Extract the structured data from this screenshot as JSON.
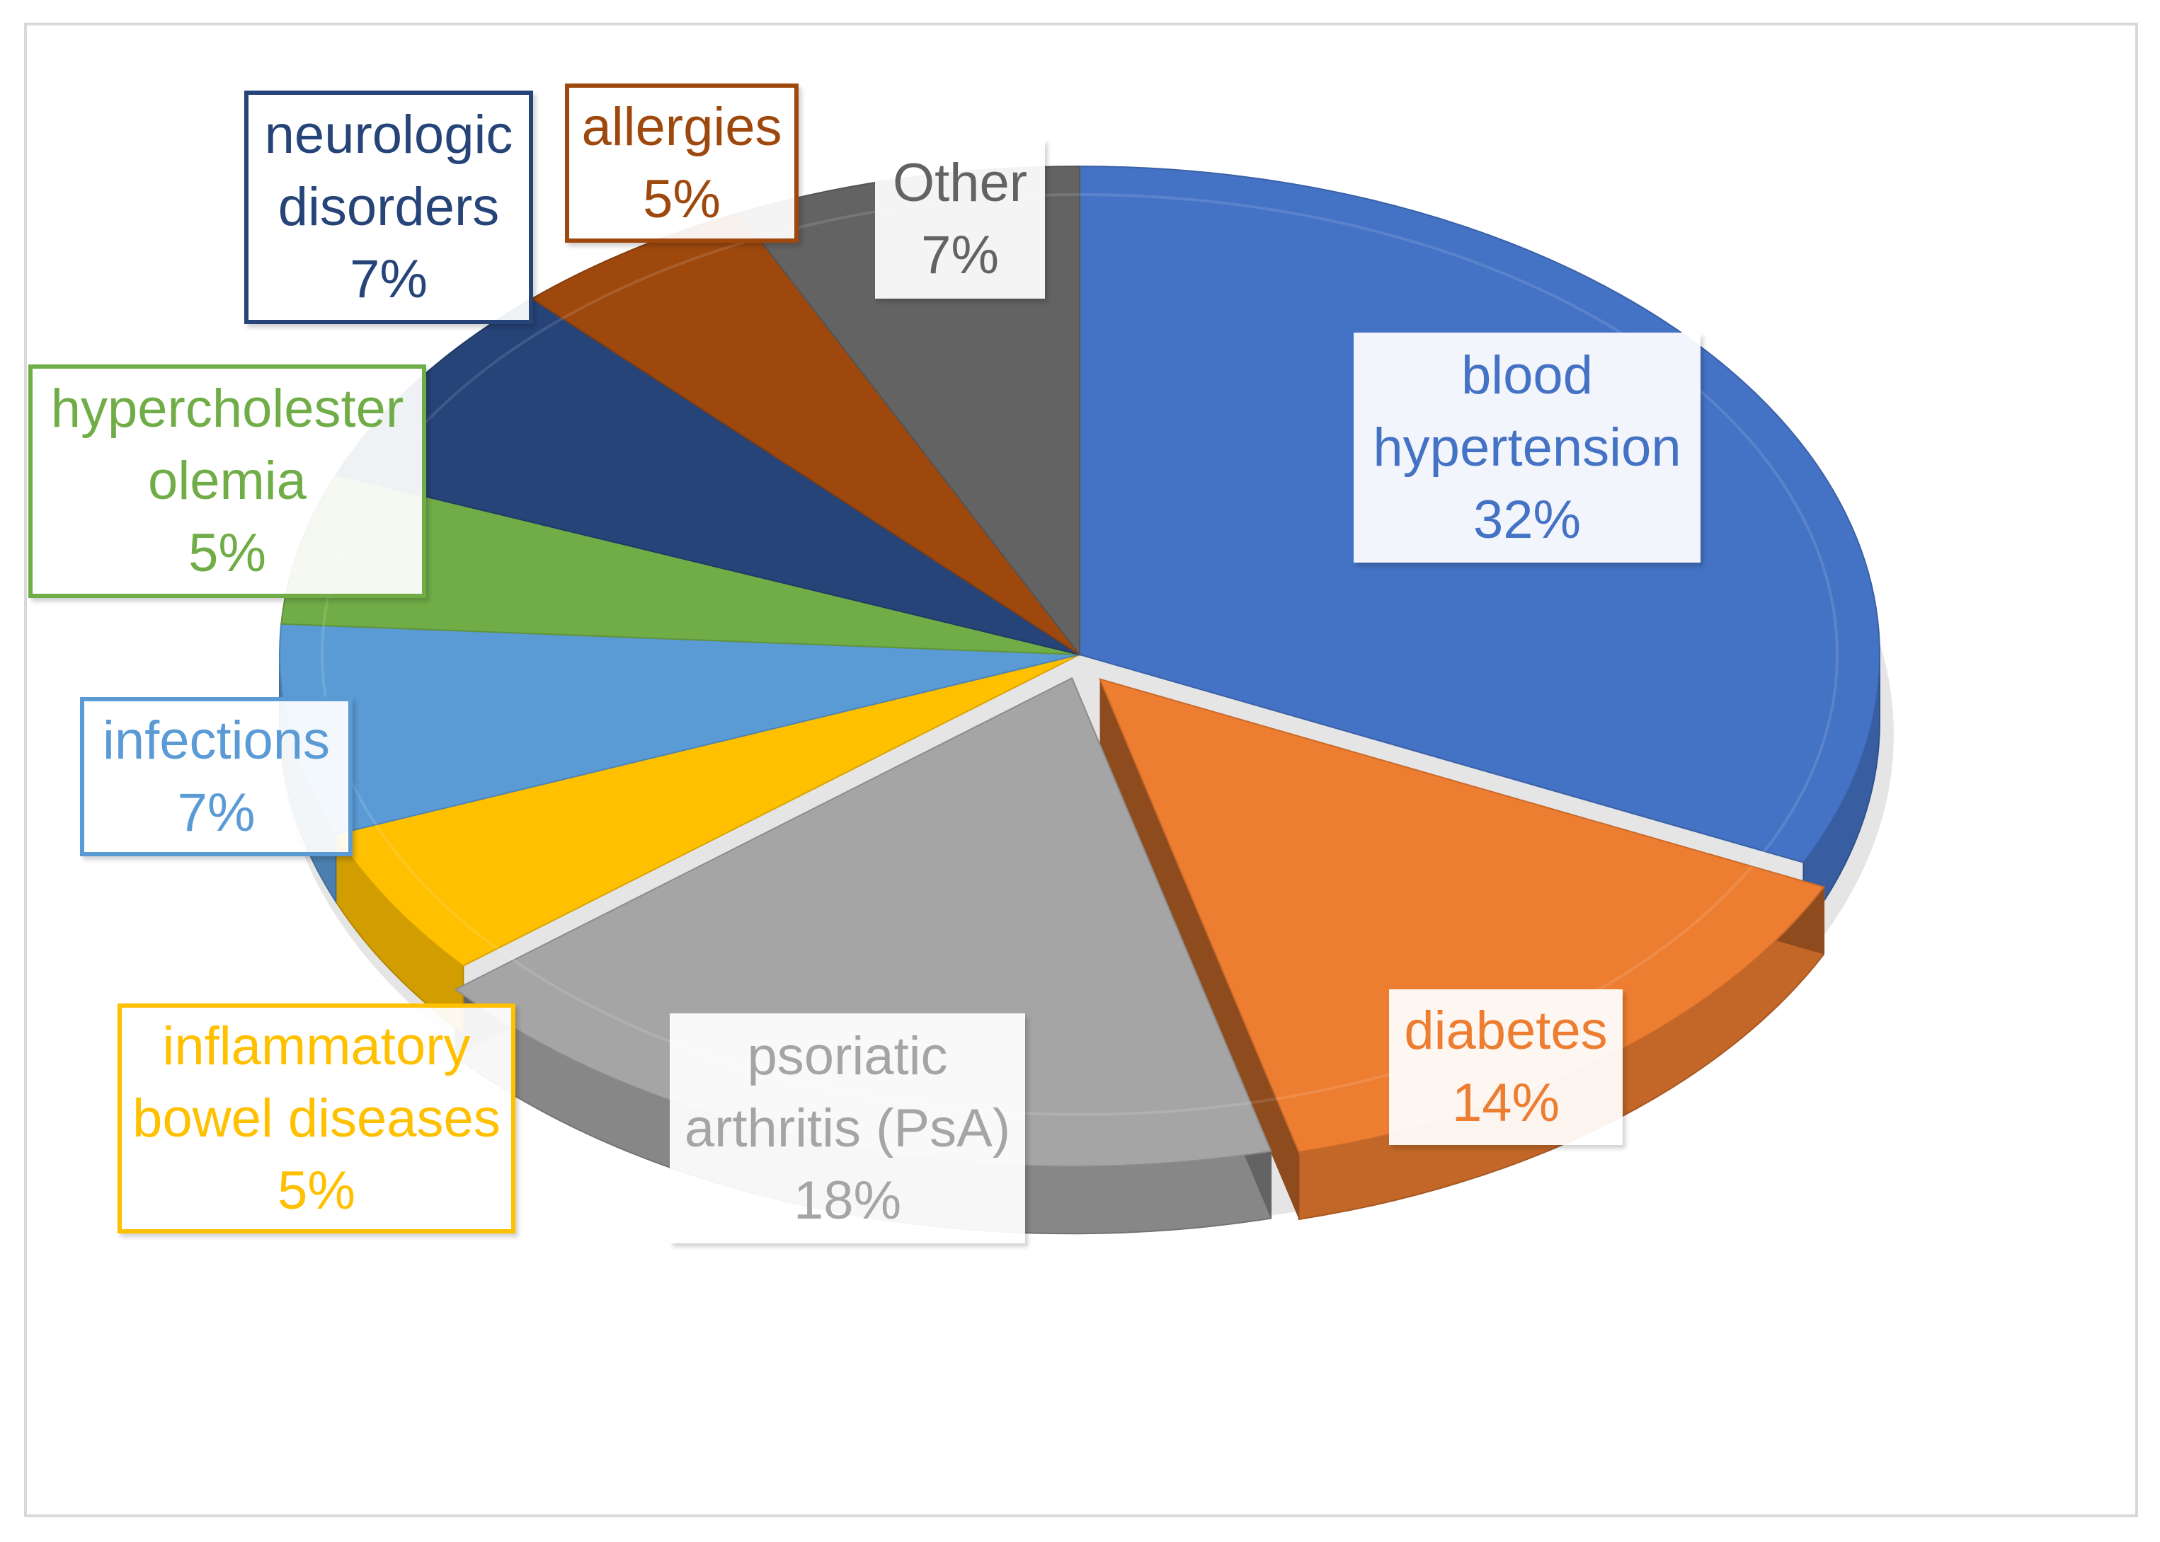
{
  "chart_data": {
    "type": "pie",
    "style": "3d",
    "title": "",
    "slices": [
      {
        "name": "blood hypertension",
        "lines": [
          "blood",
          "hypertension"
        ],
        "value": 32,
        "label": "32%",
        "color": "#4472c4"
      },
      {
        "name": "diabetes",
        "lines": [
          "diabetes"
        ],
        "value": 14,
        "label": "14%",
        "color": "#ed7d31"
      },
      {
        "name": "psoriatic arthritis (PsA)",
        "lines": [
          "psoriatic",
          "arthritis (PsA)"
        ],
        "value": 18,
        "label": "18%",
        "color": "#a5a5a5"
      },
      {
        "name": "inflammatory bowel diseases",
        "lines": [
          "inflammatory",
          "bowel diseases"
        ],
        "value": 5,
        "label": "5%",
        "color": "#ffc000"
      },
      {
        "name": "infections",
        "lines": [
          "infections"
        ],
        "value": 7,
        "label": "7%",
        "color": "#5b9bd5"
      },
      {
        "name": "hypercholesterolemia",
        "lines": [
          "hypercholester",
          "olemia"
        ],
        "value": 5,
        "label": "5%",
        "color": "#70ad47"
      },
      {
        "name": "neurologic disorders",
        "lines": [
          "neurologic",
          "disorders"
        ],
        "value": 7,
        "label": "7%",
        "color": "#264478"
      },
      {
        "name": "allergies",
        "lines": [
          "allergies"
        ],
        "value": 5,
        "label": "5%",
        "color": "#9e480e"
      },
      {
        "name": "Other",
        "lines": [
          "Other"
        ],
        "value": 7,
        "label": "7%",
        "color": "#636363"
      }
    ]
  }
}
